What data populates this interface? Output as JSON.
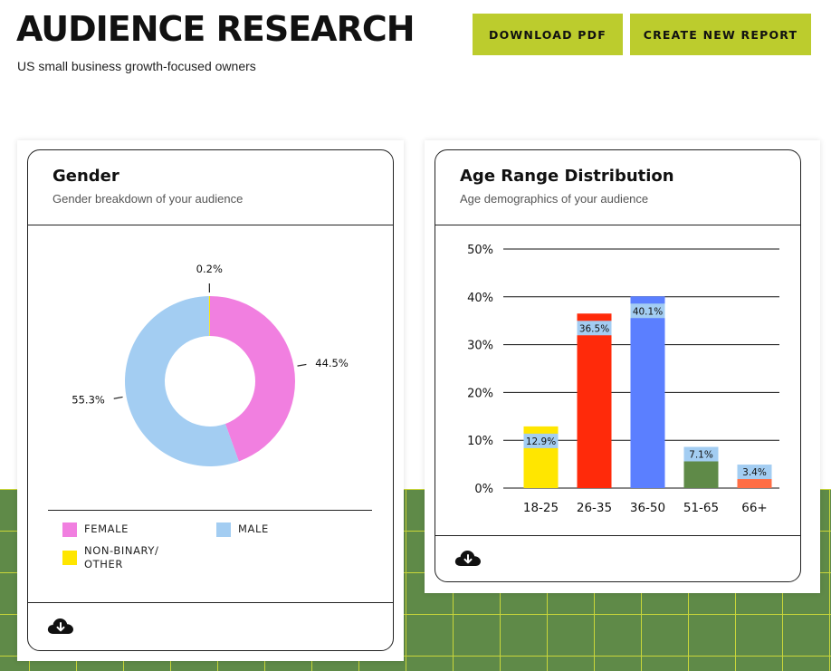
{
  "header": {
    "title": "AUDIENCE RESEARCH",
    "subtitle": "US small business growth-focused owners",
    "download_label": "DOWNLOAD PDF",
    "create_label": "CREATE NEW REPORT"
  },
  "colors": {
    "accent_button": "#bccc2d",
    "grid_background": "#5f8a48",
    "female": "#f17fe0",
    "male": "#a3cdf2",
    "non_binary": "#ffe600",
    "label_box": "#a3cdf2"
  },
  "gender_card": {
    "title": "Gender",
    "subtitle": "Gender breakdown of your audience",
    "download_icon": "cloud-download-icon",
    "legend": [
      {
        "label": "FEMALE",
        "color": "#f17fe0"
      },
      {
        "label": "MALE",
        "color": "#a3cdf2"
      },
      {
        "label": "NON-BINARY/\nOTHER",
        "color": "#ffe600"
      }
    ]
  },
  "age_card": {
    "title": "Age Range Distribution",
    "subtitle": "Age demographics of your audience",
    "download_icon": "cloud-download-icon"
  },
  "chart_data": [
    {
      "type": "pie",
      "style": "donut",
      "slices": [
        {
          "name": "FEMALE",
          "value": 44.5,
          "label": "44.5%",
          "color": "#f17fe0"
        },
        {
          "name": "MALE",
          "value": 55.3,
          "label": "55.3%",
          "color": "#a3cdf2"
        },
        {
          "name": "NON-BINARY/OTHER",
          "value": 0.2,
          "label": "0.2%",
          "color": "#ffe600"
        }
      ],
      "legend_position": "bottom"
    },
    {
      "type": "bar",
      "categories": [
        "18-25",
        "26-35",
        "36-50",
        "51-65",
        "66+"
      ],
      "values": [
        12.9,
        36.5,
        40.1,
        7.1,
        3.4
      ],
      "labels": [
        "12.9%",
        "36.5%",
        "40.1%",
        "7.1%",
        "3.4%"
      ],
      "colors": [
        "#ffe600",
        "#ff2a0a",
        "#5b7fff",
        "#5f8a48",
        "#ff6e45"
      ],
      "ylim": [
        0,
        50
      ],
      "yticks": [
        "0%",
        "10%",
        "20%",
        "30%",
        "40%",
        "50%"
      ],
      "grid": true
    }
  ]
}
